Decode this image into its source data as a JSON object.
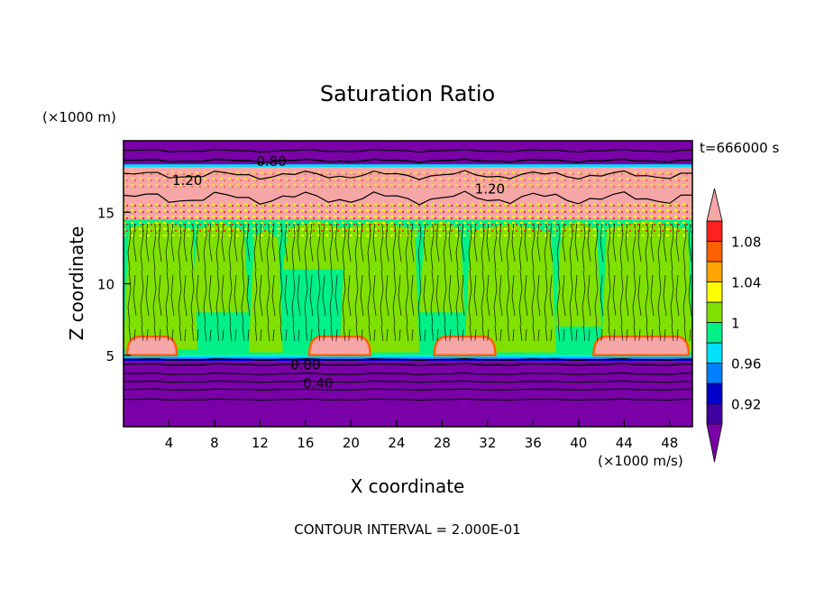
{
  "chart_data": {
    "type": "heatmap",
    "title": "Saturation Ratio",
    "xlabel": "X coordinate",
    "ylabel": "Z coordinate",
    "x_unit": "(×1000 m/s)",
    "y_unit": "(×1000 m)",
    "time_label": "t=666000 s",
    "footer": "CONTOUR INTERVAL = 2.000E-01",
    "xlim": [
      0,
      50
    ],
    "ylim": [
      0,
      20
    ],
    "x_ticks": [
      4,
      8,
      12,
      16,
      20,
      24,
      28,
      32,
      36,
      40,
      44,
      48
    ],
    "y_ticks": [
      5,
      10,
      15
    ],
    "colorbar": {
      "levels": [
        0.9,
        0.92,
        0.94,
        0.96,
        0.98,
        1.0,
        1.02,
        1.04,
        1.06,
        1.08,
        1.1
      ],
      "tick_labels": [
        "0.92",
        "0.96",
        "1",
        "1.04",
        "1.08"
      ],
      "tick_values": [
        0.92,
        0.96,
        1.0,
        1.04,
        1.08
      ],
      "colors": [
        "#7a00a8",
        "#3f00a0",
        "#0000c8",
        "#0080ff",
        "#00e0ff",
        "#00f088",
        "#80e000",
        "#ffff00",
        "#ffa500",
        "#ff6000",
        "#ff2020",
        "#f6a6a6"
      ],
      "extend": "both"
    },
    "contour_labels": [
      {
        "text": "0.80",
        "x": 13.0,
        "y": 18.6
      },
      {
        "text": "1.20",
        "x": 5.6,
        "y": 17.3
      },
      {
        "text": "1.20",
        "x": 32.2,
        "y": 16.7
      },
      {
        "text": "0.80",
        "x": 16.0,
        "y": 4.4
      },
      {
        "text": "0.40",
        "x": 17.1,
        "y": 3.1
      }
    ],
    "layers": [
      {
        "z_range": [
          0,
          4.6
        ],
        "value": "below 0.9"
      },
      {
        "z_range": [
          4.6,
          4.9
        ],
        "value": "0.92-0.98 transition"
      },
      {
        "z_range": [
          4.9,
          14.5
        ],
        "value": "0.98-1.02"
      },
      {
        "z_range": [
          14.5,
          18.2
        ],
        "value": "above 1.1"
      },
      {
        "z_range": [
          18.2,
          20
        ],
        "value": "below 0.9"
      }
    ]
  }
}
